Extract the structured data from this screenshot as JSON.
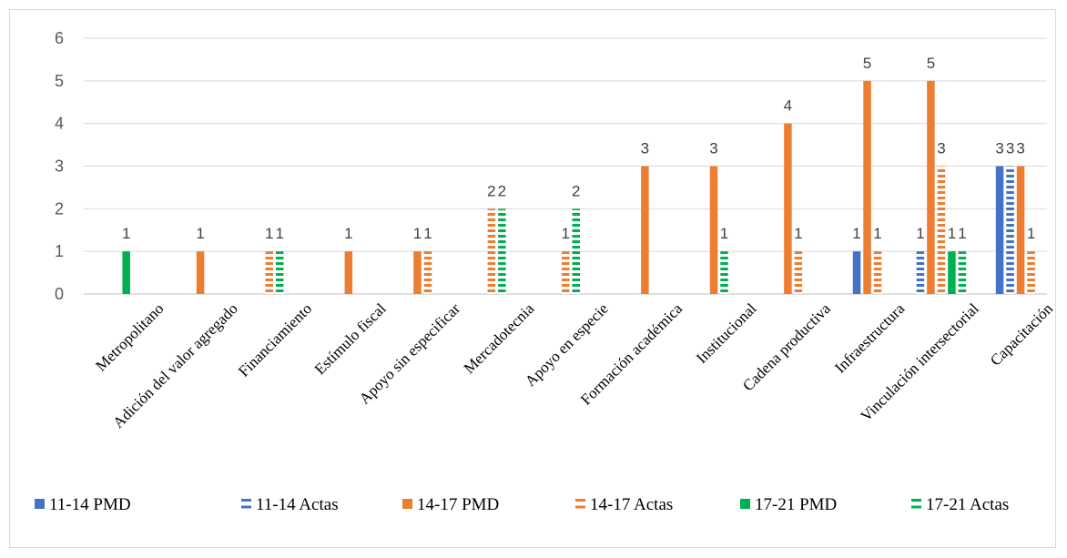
{
  "colors": {
    "blue": "#4472C4",
    "orange": "#ED7D31",
    "green": "#00B050"
  },
  "chart_data": {
    "type": "bar",
    "title": "",
    "xlabel": "",
    "ylabel": "",
    "ylim": [
      0,
      6
    ],
    "yticks": [
      "0",
      "1",
      "2",
      "3",
      "4",
      "5",
      "6"
    ],
    "grid": true,
    "legend_position": "bottom",
    "categories": [
      "Metropolitano",
      "Adición del valor agregado",
      "Financiamiento",
      "Estímulo fiscal",
      "Apoyo sin especificar",
      "Mercadotecnia",
      "Apoyo en especie",
      "Formación académica",
      "Institucional",
      "Cadena productiva",
      "Infraestructura",
      "Vinculación intersectorial",
      "Capacitación"
    ],
    "series": [
      {
        "name": "11-14 PMD",
        "color": "blue",
        "pattern": "solid",
        "values": [
          null,
          null,
          null,
          null,
          null,
          null,
          null,
          null,
          null,
          null,
          1,
          null,
          3
        ]
      },
      {
        "name": "11-14 Actas",
        "color": "blue",
        "pattern": "dashed",
        "values": [
          null,
          null,
          null,
          null,
          null,
          null,
          null,
          null,
          null,
          null,
          null,
          1,
          3
        ]
      },
      {
        "name": "14-17 PMD",
        "color": "orange",
        "pattern": "solid",
        "values": [
          null,
          1,
          null,
          1,
          1,
          null,
          null,
          3,
          3,
          4,
          5,
          5,
          3
        ]
      },
      {
        "name": "14-17 Actas",
        "color": "orange",
        "pattern": "dashed",
        "values": [
          null,
          null,
          1,
          null,
          1,
          2,
          1,
          null,
          null,
          1,
          1,
          3,
          1
        ]
      },
      {
        "name": "17-21 PMD",
        "color": "green",
        "pattern": "solid",
        "values": [
          1,
          null,
          null,
          null,
          null,
          null,
          null,
          null,
          null,
          null,
          null,
          1,
          null
        ]
      },
      {
        "name": "17-21 Actas",
        "color": "green",
        "pattern": "dashed",
        "values": [
          null,
          null,
          1,
          null,
          null,
          2,
          2,
          null,
          1,
          null,
          null,
          1,
          null
        ]
      }
    ]
  }
}
